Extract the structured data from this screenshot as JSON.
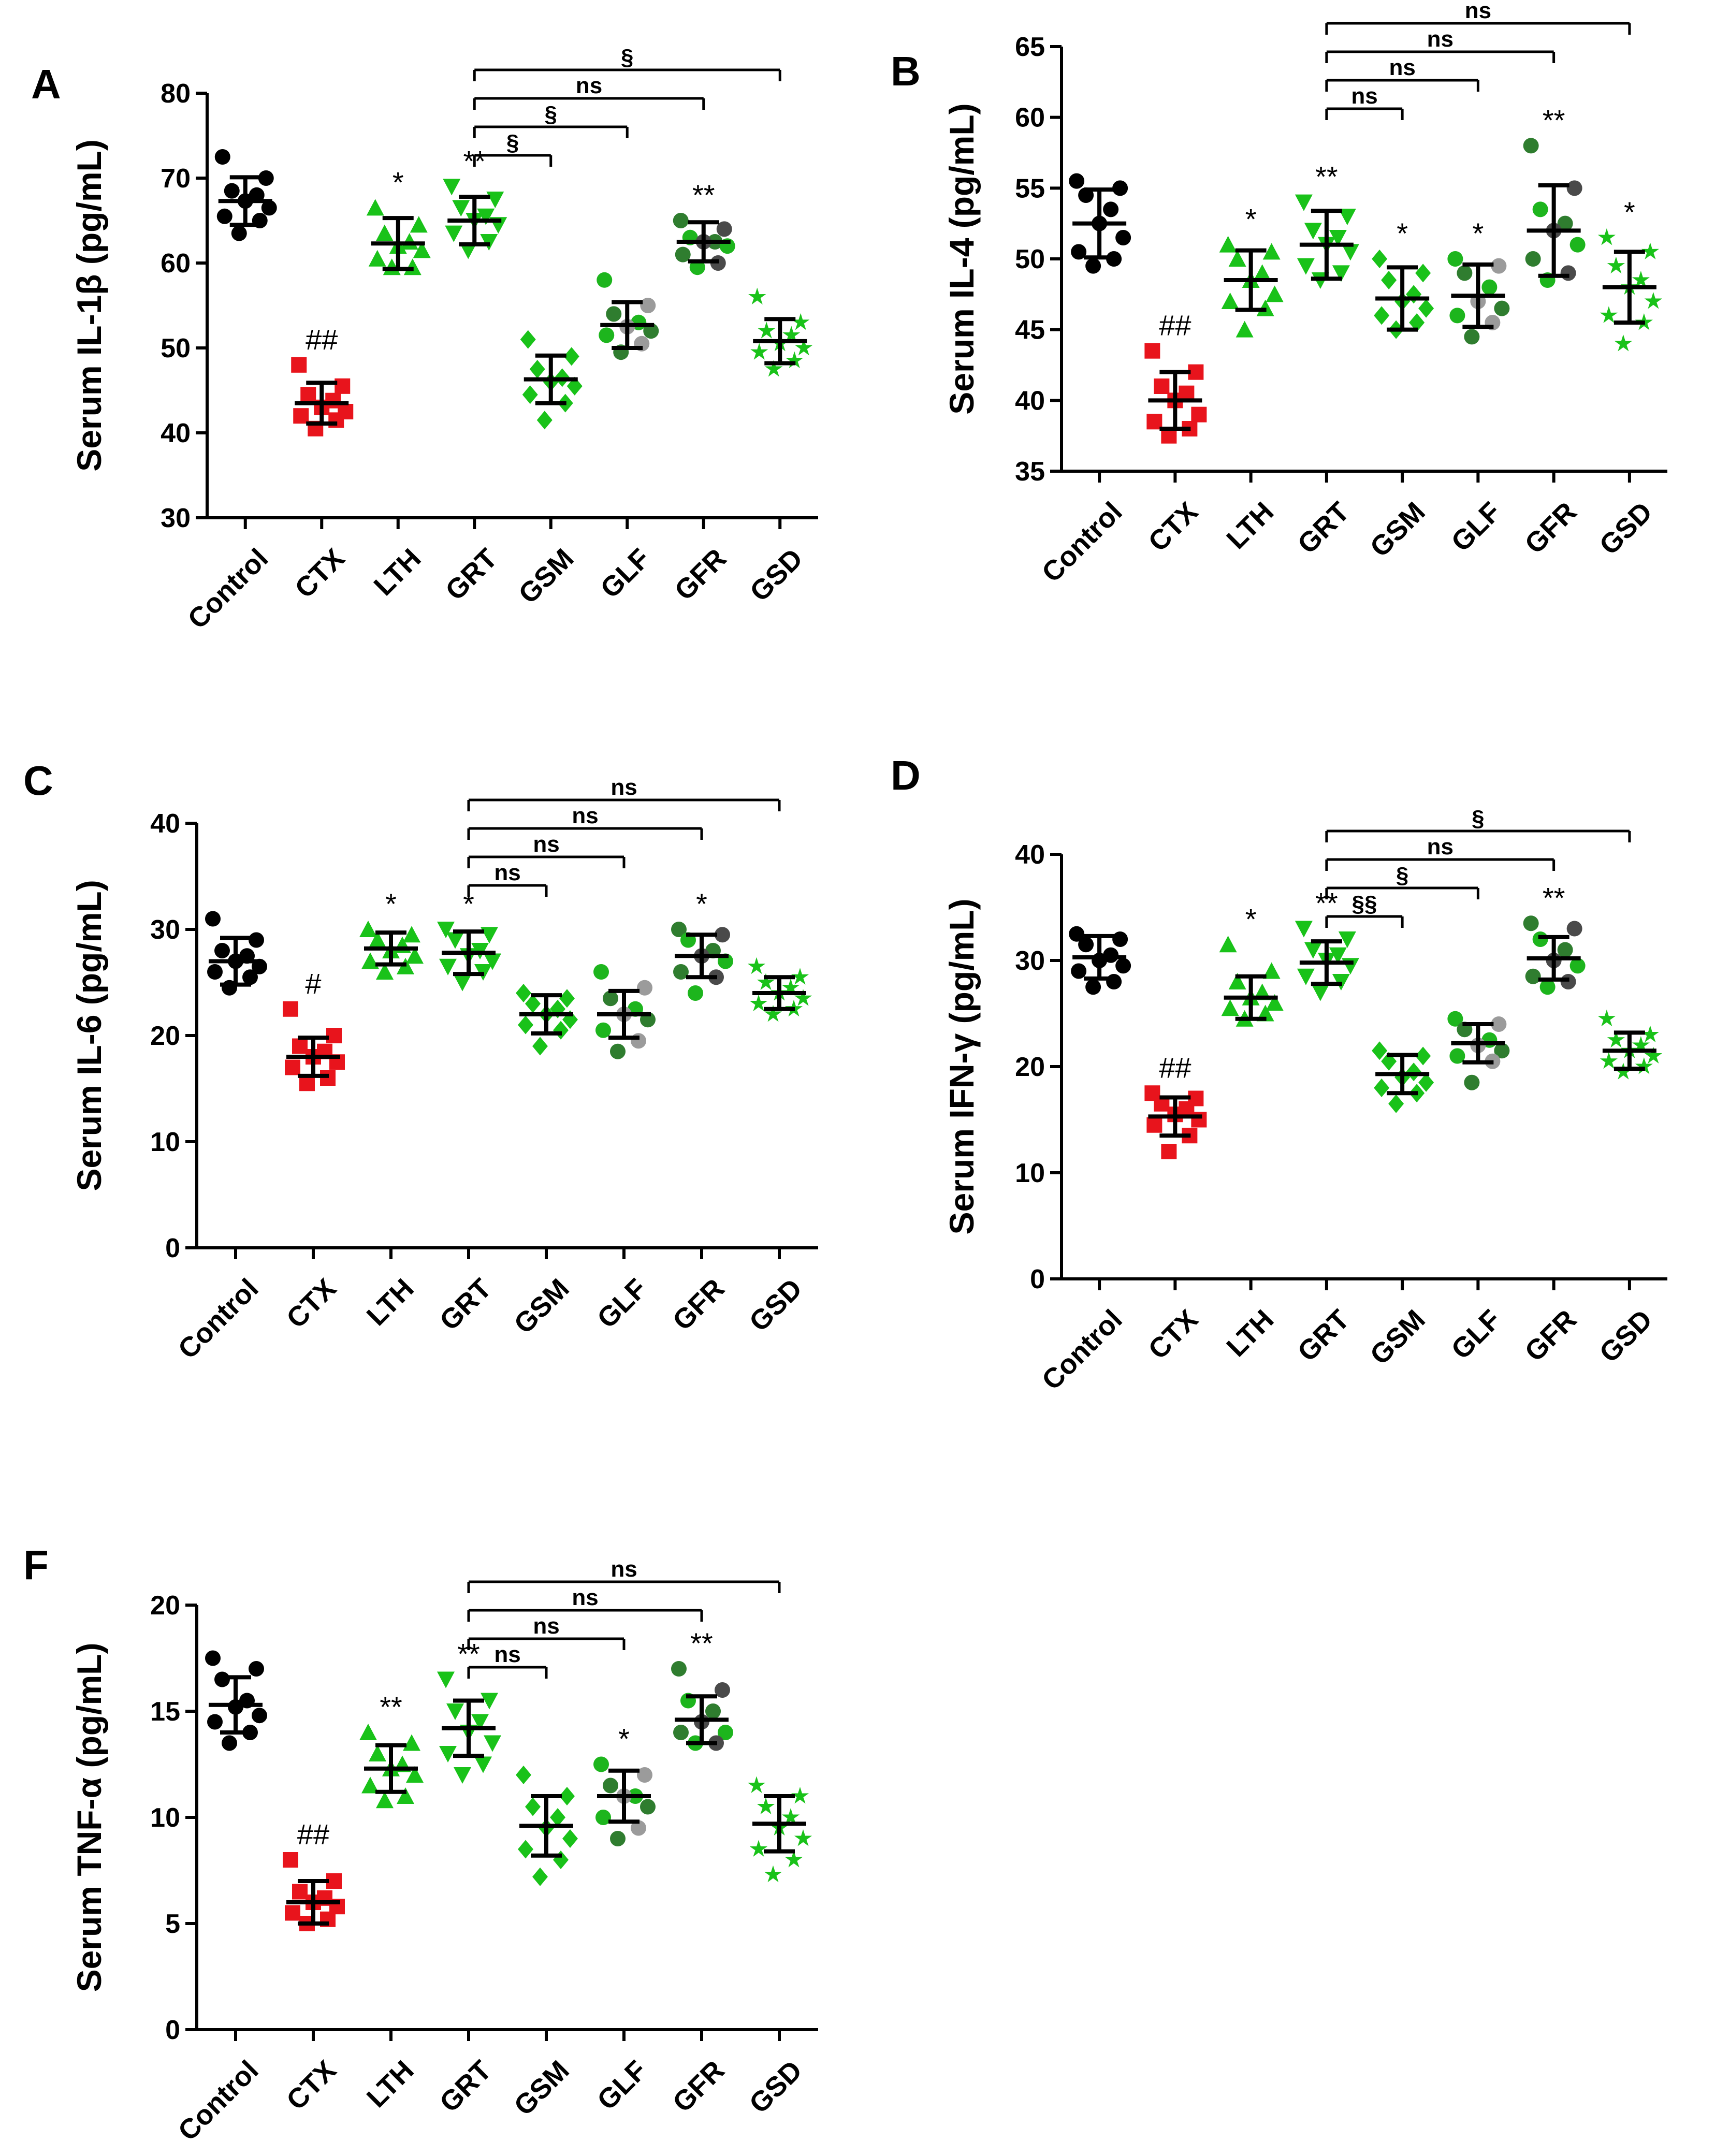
{
  "figure": {
    "categories": [
      "Control",
      "CTX",
      "LTH",
      "GRT",
      "GSM",
      "GLF",
      "GFR",
      "GSD"
    ],
    "colors": {
      "control": "#000000",
      "ctx": "#e8141c",
      "green": "#19c219",
      "gray": "#9b9b9b",
      "dark_green": "#2f7d2f",
      "axis": "#000000"
    }
  },
  "chart_data": [
    {
      "panel": "A",
      "type": "scatter",
      "ylabel": "Serum IL-1β (pg/mL)",
      "ylim": [
        30,
        80
      ],
      "yticks": [
        30,
        40,
        50,
        60,
        70,
        80
      ],
      "categories": [
        "Control",
        "CTX",
        "LTH",
        "GRT",
        "GSM",
        "GLF",
        "GFR",
        "GSD"
      ],
      "markers": [
        "circle",
        "square",
        "triangle-up",
        "triangle-down",
        "diamond",
        "circle-mixed",
        "circle-mixed",
        "star"
      ],
      "means": [
        67.3,
        43.5,
        62.3,
        65.0,
        46.3,
        52.7,
        62.5,
        50.8
      ],
      "sd": [
        2.8,
        2.4,
        3.0,
        2.8,
        2.8,
        2.7,
        2.3,
        2.6
      ],
      "points": [
        [
          72.5,
          70.0,
          68.5,
          68.0,
          67.3,
          66.5,
          65.5,
          65.0,
          63.5
        ],
        [
          48.0,
          45.5,
          44.5,
          43.8,
          43.0,
          42.5,
          42.0,
          41.5,
          40.5
        ],
        [
          66.5,
          64.5,
          63.5,
          62.5,
          62.0,
          61.5,
          60.5,
          59.5,
          59.5
        ],
        [
          69.0,
          67.5,
          66.5,
          65.5,
          65.0,
          64.5,
          63.5,
          62.5,
          61.5
        ],
        [
          51.0,
          49.0,
          47.5,
          46.5,
          46.0,
          45.5,
          44.5,
          43.5,
          41.5
        ],
        [
          58.0,
          55.0,
          54.0,
          53.0,
          52.5,
          52.0,
          51.5,
          50.5,
          49.5
        ],
        [
          65.0,
          64.0,
          63.0,
          62.5,
          62.5,
          62.0,
          61.0,
          60.0,
          59.5
        ],
        [
          56.0,
          53.0,
          52.0,
          51.5,
          50.5,
          50.0,
          49.5,
          48.5,
          47.5
        ]
      ],
      "point_labels": [
        "",
        "##",
        "*",
        "**",
        "",
        "",
        "**",
        ""
      ],
      "comparisons": [
        {
          "from": "GRT",
          "to": "GSM",
          "label": "§"
        },
        {
          "from": "GRT",
          "to": "GLF",
          "label": "§"
        },
        {
          "from": "GRT",
          "to": "GFR",
          "label": "ns"
        },
        {
          "from": "GRT",
          "to": "GSD",
          "label": "§"
        }
      ]
    },
    {
      "panel": "B",
      "type": "scatter",
      "ylabel": "Serum IL-4 (pg/mL)",
      "ylim": [
        35,
        65
      ],
      "yticks": [
        35,
        40,
        45,
        50,
        55,
        60,
        65
      ],
      "categories": [
        "Control",
        "CTX",
        "LTH",
        "GRT",
        "GSM",
        "GLF",
        "GFR",
        "GSD"
      ],
      "markers": [
        "circle",
        "square",
        "triangle-up",
        "triangle-down",
        "diamond",
        "circle-mixed",
        "circle-mixed",
        "star"
      ],
      "means": [
        52.5,
        40.0,
        48.5,
        51.0,
        47.2,
        47.4,
        52.0,
        48.0
      ],
      "sd": [
        2.4,
        2.0,
        2.1,
        2.4,
        2.2,
        2.2,
        3.2,
        2.5
      ],
      "points": [
        [
          55.5,
          55.0,
          54.5,
          53.5,
          52.5,
          51.5,
          50.5,
          50.0,
          49.5
        ],
        [
          43.5,
          42.0,
          41.0,
          40.5,
          40.0,
          39.0,
          38.5,
          38.0,
          37.5
        ],
        [
          51.0,
          50.5,
          50.0,
          49.0,
          48.5,
          47.5,
          47.0,
          46.5,
          45.0
        ],
        [
          54.0,
          53.0,
          52.0,
          51.5,
          51.0,
          50.5,
          49.5,
          49.0,
          48.5
        ],
        [
          50.0,
          49.0,
          48.5,
          47.5,
          47.0,
          46.5,
          46.0,
          45.5,
          45.0
        ],
        [
          50.0,
          49.5,
          49.0,
          48.0,
          47.0,
          46.5,
          46.0,
          45.5,
          44.5
        ],
        [
          58.0,
          55.0,
          53.5,
          52.5,
          52.0,
          51.0,
          50.0,
          49.0,
          48.5
        ],
        [
          51.5,
          50.5,
          49.5,
          48.5,
          48.0,
          47.0,
          46.0,
          45.5,
          44.0
        ]
      ],
      "point_labels": [
        "",
        "##",
        "*",
        "**",
        "*",
        "*",
        "**",
        "*"
      ],
      "comparisons": [
        {
          "from": "GRT",
          "to": "GSM",
          "label": "ns"
        },
        {
          "from": "GRT",
          "to": "GLF",
          "label": "ns"
        },
        {
          "from": "GRT",
          "to": "GFR",
          "label": "ns"
        },
        {
          "from": "GRT",
          "to": "GSD",
          "label": "ns"
        }
      ]
    },
    {
      "panel": "C",
      "type": "scatter",
      "ylabel": "Serum IL-6 (pg/mL)",
      "ylim": [
        0,
        40
      ],
      "yticks": [
        0,
        10,
        20,
        30,
        40
      ],
      "categories": [
        "Control",
        "CTX",
        "LTH",
        "GRT",
        "GSM",
        "GLF",
        "GFR",
        "GSD"
      ],
      "markers": [
        "circle",
        "square",
        "triangle-up",
        "triangle-down",
        "diamond",
        "circle-mixed",
        "circle-mixed",
        "star"
      ],
      "means": [
        27.0,
        18.0,
        28.2,
        27.8,
        22.0,
        22.0,
        27.5,
        24.0
      ],
      "sd": [
        2.2,
        1.8,
        1.5,
        2.0,
        1.8,
        2.2,
        2.0,
        1.5
      ],
      "points": [
        [
          31.0,
          29.0,
          28.0,
          27.5,
          27.0,
          26.5,
          26.0,
          25.5,
          24.5
        ],
        [
          22.5,
          20.0,
          19.0,
          18.5,
          18.0,
          17.5,
          17.0,
          16.0,
          15.5
        ],
        [
          30.0,
          29.5,
          29.0,
          28.5,
          28.0,
          27.5,
          27.0,
          26.5,
          26.0
        ],
        [
          30.0,
          29.5,
          29.0,
          28.0,
          27.5,
          27.0,
          26.5,
          26.0,
          25.0
        ],
        [
          24.0,
          23.5,
          23.0,
          22.5,
          22.0,
          21.5,
          21.0,
          20.5,
          19.0
        ],
        [
          26.0,
          24.5,
          23.5,
          22.5,
          22.0,
          21.5,
          20.5,
          19.5,
          18.5
        ],
        [
          30.0,
          29.5,
          29.0,
          28.0,
          27.5,
          27.0,
          26.0,
          25.5,
          24.0
        ],
        [
          26.5,
          25.5,
          25.0,
          24.5,
          24.0,
          23.5,
          23.0,
          22.5,
          22.0
        ]
      ],
      "point_labels": [
        "",
        "#",
        "*",
        "*",
        "",
        "",
        "*",
        ""
      ],
      "comparisons": [
        {
          "from": "GRT",
          "to": "GSM",
          "label": "ns"
        },
        {
          "from": "GRT",
          "to": "GLF",
          "label": "ns"
        },
        {
          "from": "GRT",
          "to": "GFR",
          "label": "ns"
        },
        {
          "from": "GRT",
          "to": "GSD",
          "label": "ns"
        }
      ]
    },
    {
      "panel": "D",
      "type": "scatter",
      "ylabel": "Serum IFN-γ (pg/mL)",
      "ylim": [
        0,
        40
      ],
      "yticks": [
        0,
        10,
        20,
        30,
        40
      ],
      "categories": [
        "Control",
        "CTX",
        "LTH",
        "GRT",
        "GSM",
        "GLF",
        "GFR",
        "GSD"
      ],
      "markers": [
        "circle",
        "square",
        "triangle-up",
        "triangle-down",
        "diamond",
        "circle-mixed",
        "circle-mixed",
        "star"
      ],
      "means": [
        30.3,
        15.3,
        26.5,
        29.8,
        19.3,
        22.2,
        30.2,
        21.5
      ],
      "sd": [
        2.0,
        1.8,
        2.0,
        2.0,
        1.8,
        1.8,
        2.0,
        1.7
      ],
      "points": [
        [
          32.5,
          32.0,
          31.5,
          30.5,
          30.0,
          29.5,
          29.0,
          28.0,
          27.5
        ],
        [
          17.5,
          17.0,
          16.5,
          16.0,
          15.5,
          15.0,
          14.5,
          13.5,
          12.0
        ],
        [
          31.5,
          29.0,
          28.0,
          27.0,
          26.5,
          26.0,
          25.5,
          25.0,
          24.5
        ],
        [
          33.0,
          32.0,
          31.0,
          30.5,
          30.0,
          29.5,
          28.5,
          28.0,
          27.0
        ],
        [
          21.5,
          21.0,
          20.5,
          19.5,
          19.0,
          18.5,
          18.0,
          17.5,
          16.5
        ],
        [
          24.5,
          24.0,
          23.5,
          22.5,
          22.0,
          21.5,
          21.0,
          20.5,
          18.5
        ],
        [
          33.5,
          33.0,
          32.0,
          31.0,
          30.0,
          29.5,
          28.5,
          28.0,
          27.5
        ],
        [
          24.5,
          23.0,
          22.5,
          22.0,
          21.5,
          21.0,
          20.5,
          20.0,
          19.5
        ]
      ],
      "point_labels": [
        "",
        "##",
        "*",
        "**",
        "",
        "",
        "**",
        ""
      ],
      "comparisons": [
        {
          "from": "GRT",
          "to": "GSM",
          "label": "§§"
        },
        {
          "from": "GRT",
          "to": "GLF",
          "label": "§"
        },
        {
          "from": "GRT",
          "to": "GFR",
          "label": "ns"
        },
        {
          "from": "GRT",
          "to": "GSD",
          "label": "§"
        }
      ]
    },
    {
      "panel": "F",
      "type": "scatter",
      "ylabel": "Serum TNF-α (pg/mL)",
      "ylim": [
        0,
        20
      ],
      "yticks": [
        0,
        5,
        10,
        15,
        20
      ],
      "categories": [
        "Control",
        "CTX",
        "LTH",
        "GRT",
        "GSM",
        "GLF",
        "GFR",
        "GSD"
      ],
      "markers": [
        "circle",
        "square",
        "triangle-up",
        "triangle-down",
        "diamond",
        "circle-mixed",
        "circle-mixed",
        "star"
      ],
      "means": [
        15.3,
        6.0,
        12.3,
        14.2,
        9.6,
        11.0,
        14.6,
        9.7
      ],
      "sd": [
        1.3,
        1.0,
        1.1,
        1.3,
        1.4,
        1.2,
        1.1,
        1.3
      ],
      "points": [
        [
          17.5,
          17.0,
          16.5,
          15.5,
          15.2,
          14.8,
          14.5,
          14.0,
          13.5
        ],
        [
          8.0,
          7.0,
          6.5,
          6.2,
          6.0,
          5.8,
          5.5,
          5.2,
          5.0
        ],
        [
          14.0,
          13.5,
          13.0,
          12.5,
          12.3,
          12.0,
          11.5,
          11.0,
          10.8
        ],
        [
          16.5,
          15.5,
          15.0,
          14.5,
          14.0,
          13.5,
          13.0,
          12.5,
          12.0
        ],
        [
          12.0,
          11.0,
          10.5,
          10.0,
          9.5,
          9.0,
          8.5,
          8.0,
          7.2
        ],
        [
          12.5,
          12.0,
          11.5,
          11.0,
          11.0,
          10.5,
          10.0,
          9.5,
          9.0
        ],
        [
          17.0,
          16.0,
          15.5,
          15.0,
          14.5,
          14.0,
          14.0,
          13.5,
          13.5
        ],
        [
          11.5,
          11.0,
          10.5,
          10.0,
          9.5,
          9.0,
          8.5,
          8.0,
          7.3
        ]
      ],
      "point_labels": [
        "",
        "##",
        "**",
        "**",
        "",
        "*",
        "**",
        ""
      ],
      "comparisons": [
        {
          "from": "GRT",
          "to": "GSM",
          "label": "ns"
        },
        {
          "from": "GRT",
          "to": "GLF",
          "label": "ns"
        },
        {
          "from": "GRT",
          "to": "GFR",
          "label": "ns"
        },
        {
          "from": "GRT",
          "to": "GSD",
          "label": "ns"
        }
      ]
    }
  ]
}
